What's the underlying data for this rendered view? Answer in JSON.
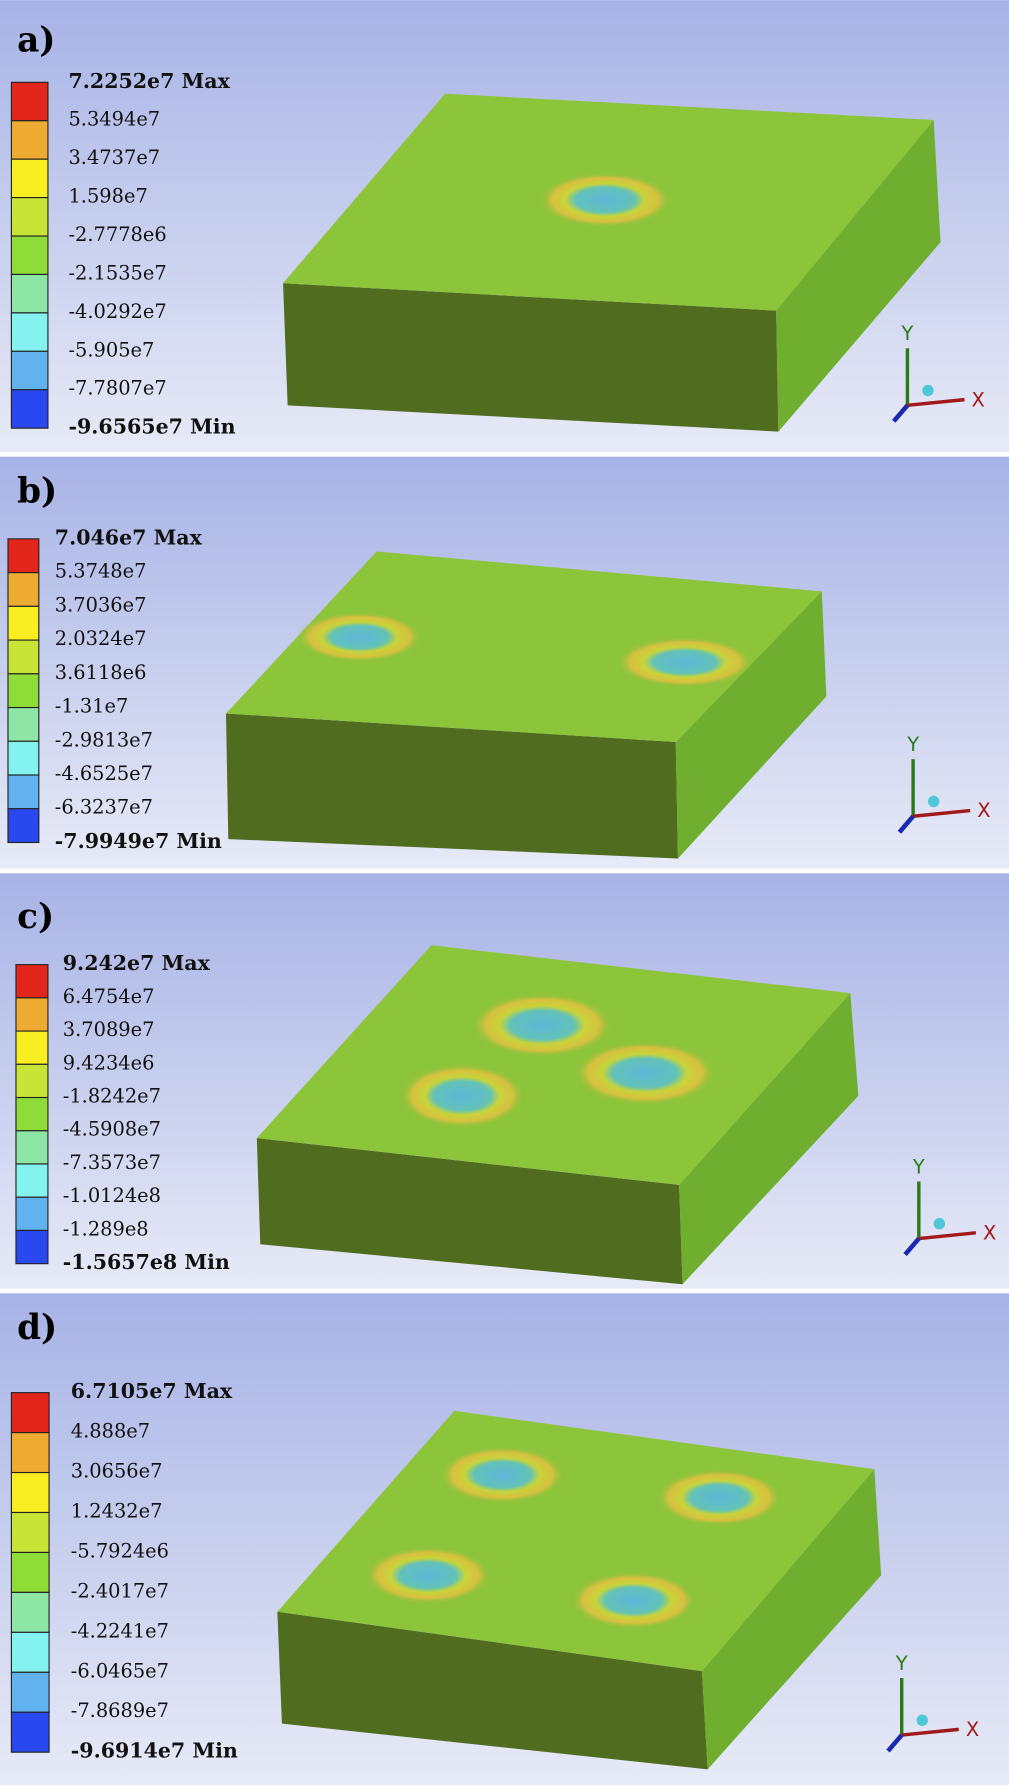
{
  "axis_labels": {
    "x": "X",
    "y": "Y"
  },
  "panels": [
    {
      "label": "a)",
      "legend": [
        "7.2252e7 Max",
        "5.3494e7",
        "3.4737e7",
        "1.598e7",
        "-2.7778e6",
        "-2.1535e7",
        "-4.0292e7",
        "-5.905e7",
        "-7.7807e7",
        "-9.6565e7 Min"
      ]
    },
    {
      "label": "b)",
      "legend": [
        "7.046e7 Max",
        "5.3748e7",
        "3.7036e7",
        "2.0324e7",
        "3.6118e6",
        "-1.31e7",
        "-2.9813e7",
        "-4.6525e7",
        "-6.3237e7",
        "-7.9949e7 Min"
      ]
    },
    {
      "label": "c)",
      "legend": [
        "9.242e7 Max",
        "6.4754e7",
        "3.7089e7",
        "9.4234e6",
        "-1.8242e7",
        "-4.5908e7",
        "-7.3573e7",
        "-1.0124e8",
        "-1.289e8",
        "-1.5657e8 Min"
      ]
    },
    {
      "label": "d)",
      "legend": [
        "6.7105e7 Max",
        "4.888e7",
        "3.0656e7",
        "1.2432e7",
        "-5.7924e6",
        "-2.4017e7",
        "-4.2241e7",
        "-6.0465e7",
        "-7.8689e7",
        "-9.6914e7 Min"
      ]
    }
  ]
}
